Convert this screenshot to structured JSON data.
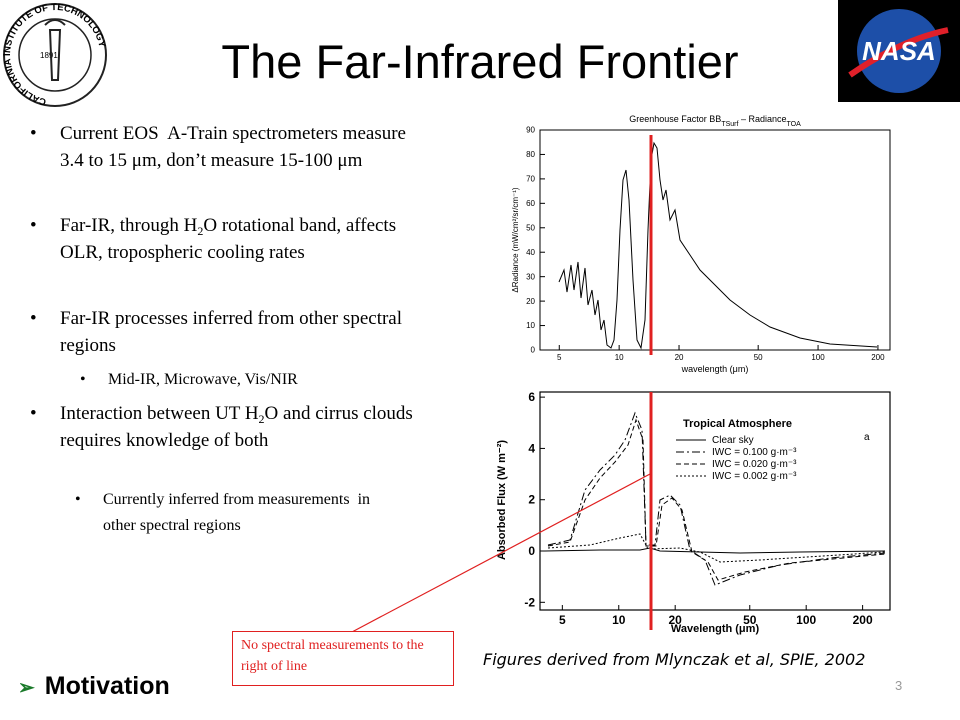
{
  "header": {
    "title": "The Far-Infrared Frontier"
  },
  "logos": {
    "left_text": "CALIFORNIA INSTITUTE OF TECHNOLOGY",
    "left_year": "1891",
    "right_text": "NASA"
  },
  "bullets": [
    {
      "text": "Current EOS  A-Train spectrometers measure 3.4 to 15 μm, don’t measure 15-100 μm"
    },
    {
      "text_parts": [
        "Far-IR, through H",
        "2",
        "O rotational band, affects OLR, tropospheric cooling rates"
      ]
    },
    {
      "text": "Far-IR processes inferred from other spectral regions"
    },
    {
      "text": "Mid-IR, Microwave, Vis/NIR"
    },
    {
      "text_parts": [
        "Interaction between UT H",
        "2",
        "O and cirrus clouds requires knowledge of both"
      ]
    },
    {
      "text": "Currently inferred from measurements  in other spectral regions"
    }
  ],
  "figure_top": {
    "title_parts": [
      "Greenhouse Factor BB",
      "TSurf",
      " – Radiance",
      "TOA"
    ],
    "y_label": "ΔRadiance (mW/cm²/sr/cm⁻¹)",
    "x_label": "wavelength (μm)",
    "xlim": [
      4,
      230
    ],
    "ylim": [
      0,
      90
    ],
    "xticks": [
      5,
      10,
      20,
      50,
      100,
      200
    ],
    "yticks": [
      0,
      10,
      20,
      30,
      40,
      50,
      60,
      70,
      80,
      90
    ]
  },
  "figure_bottom": {
    "title": "Tropical Atmosphere",
    "panel": "a",
    "legend": [
      "Clear sky",
      "IWC = 0.100 g·m⁻³",
      "IWC = 0.020 g·m⁻³",
      "IWC = 0.002 g·m⁻³"
    ],
    "y_label": "Absorbed Flux (W m⁻²)",
    "x_label": "Wavelength (μm)",
    "xlim": [
      3.8,
      280
    ],
    "ylim": [
      -2.3,
      6.2
    ],
    "xticks": [
      5,
      10,
      20,
      50,
      100,
      200
    ],
    "yticks": [
      -2,
      0,
      2,
      4,
      6
    ]
  },
  "annotation": {
    "text": "No spectral measurements to the right of line"
  },
  "caption": {
    "text": "Figures derived from Mlynczak et al, SPIE, 2002"
  },
  "footer": {
    "section": "Motivation",
    "page_number": "3"
  }
}
